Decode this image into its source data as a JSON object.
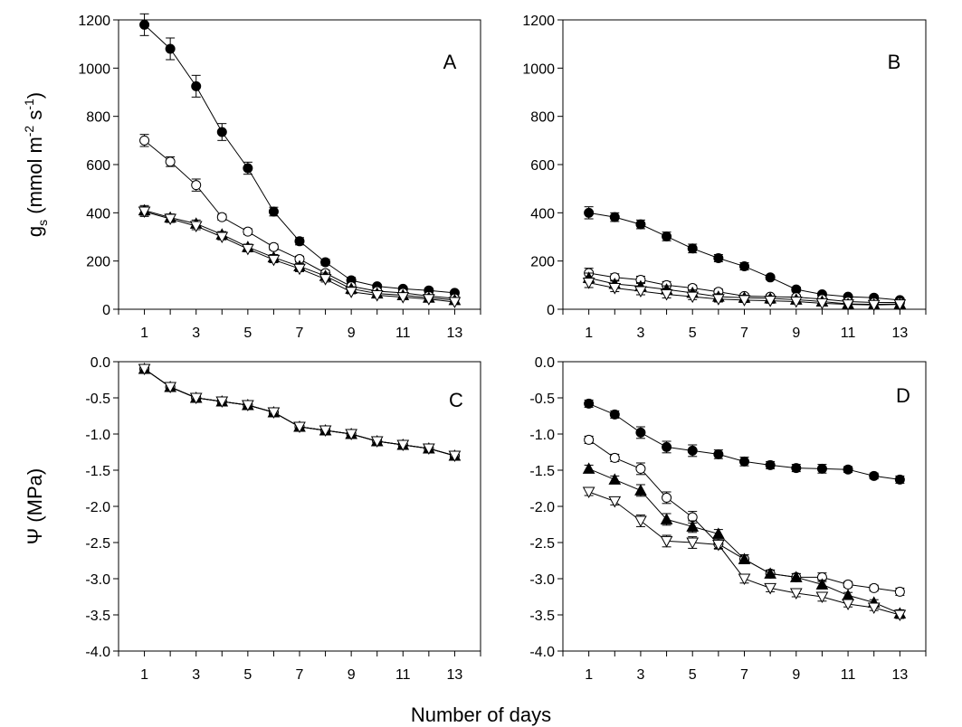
{
  "figure": {
    "xlabel": "Number of days"
  },
  "chart_data": [
    {
      "panel": "A",
      "type": "line",
      "ylabel": "gs (mmol m-2 s-1)",
      "ylim": [
        0,
        1200
      ],
      "yticks": [
        0,
        200,
        400,
        600,
        800,
        1000,
        1200
      ],
      "xlim": [
        0,
        14
      ],
      "xticks": [
        1,
        3,
        5,
        7,
        9,
        11,
        13
      ],
      "x": [
        1,
        2,
        3,
        4,
        5,
        6,
        7,
        8,
        9,
        10,
        11,
        12,
        13
      ],
      "series": [
        {
          "name": "filled-circle",
          "marker": "circle-filled",
          "values": [
            1180,
            1080,
            925,
            735,
            585,
            405,
            282,
            195,
            120,
            95,
            85,
            78,
            68
          ],
          "errors": [
            45,
            45,
            45,
            35,
            25,
            18,
            15,
            12,
            12,
            8,
            8,
            8,
            8
          ]
        },
        {
          "name": "open-circle",
          "marker": "circle-open",
          "values": [
            700,
            612,
            515,
            382,
            322,
            258,
            208,
            150,
            95,
            75,
            68,
            55,
            45
          ],
          "errors": [
            25,
            20,
            25,
            12,
            12,
            12,
            12,
            12,
            8,
            8,
            8,
            8,
            8
          ]
        },
        {
          "name": "filled-triangle",
          "marker": "triangle-up-filled",
          "values": [
            410,
            380,
            355,
            310,
            258,
            215,
            178,
            138,
            85,
            65,
            58,
            48,
            38
          ],
          "errors": [
            20,
            15,
            15,
            12,
            12,
            12,
            12,
            12,
            8,
            8,
            8,
            8,
            8
          ]
        },
        {
          "name": "open-triangle",
          "marker": "triangle-down-open",
          "values": [
            405,
            375,
            345,
            300,
            250,
            205,
            168,
            125,
            72,
            58,
            50,
            42,
            30
          ],
          "errors": [
            20,
            15,
            15,
            12,
            12,
            12,
            12,
            12,
            8,
            8,
            8,
            8,
            8
          ]
        }
      ]
    },
    {
      "panel": "B",
      "type": "line",
      "ylabel": "",
      "ylim": [
        0,
        1200
      ],
      "yticks": [
        0,
        200,
        400,
        600,
        800,
        1000,
        1200
      ],
      "xlim": [
        0,
        14
      ],
      "xticks": [
        1,
        3,
        5,
        7,
        9,
        11,
        13
      ],
      "x": [
        1,
        2,
        3,
        4,
        5,
        6,
        7,
        8,
        9,
        10,
        11,
        12,
        13
      ],
      "series": [
        {
          "name": "filled-circle",
          "marker": "circle-filled",
          "values": [
            400,
            382,
            352,
            302,
            252,
            212,
            178,
            132,
            82,
            62,
            52,
            48,
            38
          ],
          "errors": [
            25,
            18,
            18,
            18,
            18,
            15,
            15,
            10,
            10,
            8,
            8,
            8,
            8
          ]
        },
        {
          "name": "open-circle",
          "marker": "circle-open",
          "values": [
            150,
            132,
            122,
            100,
            88,
            72,
            55,
            52,
            50,
            42,
            32,
            28,
            28
          ],
          "errors": [
            20,
            15,
            15,
            15,
            12,
            12,
            10,
            10,
            10,
            8,
            8,
            8,
            8
          ]
        },
        {
          "name": "filled-triangle",
          "marker": "triangle-up-filled",
          "values": [
            130,
            105,
            95,
            82,
            68,
            52,
            48,
            45,
            40,
            32,
            22,
            20,
            22
          ],
          "errors": [
            20,
            15,
            15,
            15,
            12,
            12,
            10,
            10,
            10,
            8,
            8,
            8,
            8
          ]
        },
        {
          "name": "open-triangle",
          "marker": "triangle-down-open",
          "values": [
            110,
            88,
            75,
            62,
            52,
            42,
            38,
            35,
            32,
            25,
            20,
            18,
            20
          ],
          "errors": [
            20,
            15,
            15,
            15,
            12,
            12,
            10,
            10,
            10,
            8,
            8,
            8,
            8
          ]
        }
      ]
    },
    {
      "panel": "C",
      "type": "line",
      "ylabel": "Ψ (MPa)",
      "ylim": [
        -4.0,
        0.0
      ],
      "yticks": [
        0.0,
        -0.5,
        -1.0,
        -1.5,
        -2.0,
        -2.5,
        -3.0,
        -3.5,
        -4.0
      ],
      "ytick_labels": [
        "0.0",
        "-0.5",
        "-1.0",
        "-1.5",
        "-2.0",
        "-2.5",
        "-3.0",
        "-3.5",
        "-4.0"
      ],
      "xlim": [
        0,
        14
      ],
      "xticks": [
        1,
        3,
        5,
        7,
        9,
        11,
        13
      ],
      "x": [
        1,
        2,
        3,
        4,
        5,
        6,
        7,
        8,
        9,
        10,
        11,
        12,
        13
      ],
      "series": [
        {
          "name": "filled-circle",
          "marker": "circle-filled",
          "values": [
            -0.1,
            -0.35,
            -0.5,
            -0.55,
            -0.6,
            -0.7,
            -0.9,
            -0.95,
            -1.0,
            -1.1,
            -1.15,
            -1.2,
            -1.3
          ],
          "errors": [
            0.03,
            0.03,
            0.03,
            0.03,
            0.03,
            0.03,
            0.03,
            0.03,
            0.03,
            0.03,
            0.03,
            0.03,
            0.03
          ]
        },
        {
          "name": "open-circle",
          "marker": "circle-open",
          "values": [
            -0.1,
            -0.35,
            -0.5,
            -0.55,
            -0.6,
            -0.7,
            -0.9,
            -0.95,
            -1.0,
            -1.1,
            -1.15,
            -1.2,
            -1.3
          ],
          "errors": [
            0.03,
            0.03,
            0.03,
            0.03,
            0.03,
            0.03,
            0.03,
            0.03,
            0.03,
            0.03,
            0.03,
            0.03,
            0.03
          ]
        },
        {
          "name": "filled-triangle",
          "marker": "triangle-up-filled",
          "values": [
            -0.1,
            -0.35,
            -0.5,
            -0.55,
            -0.6,
            -0.7,
            -0.9,
            -0.95,
            -1.0,
            -1.1,
            -1.15,
            -1.2,
            -1.3
          ],
          "errors": [
            0.03,
            0.03,
            0.03,
            0.03,
            0.03,
            0.03,
            0.03,
            0.03,
            0.03,
            0.03,
            0.03,
            0.03,
            0.03
          ]
        },
        {
          "name": "open-triangle",
          "marker": "triangle-down-open",
          "values": [
            -0.1,
            -0.35,
            -0.5,
            -0.55,
            -0.6,
            -0.7,
            -0.9,
            -0.95,
            -1.0,
            -1.1,
            -1.15,
            -1.2,
            -1.3
          ],
          "errors": [
            0.03,
            0.03,
            0.03,
            0.03,
            0.03,
            0.03,
            0.03,
            0.03,
            0.03,
            0.03,
            0.03,
            0.03,
            0.03
          ]
        }
      ]
    },
    {
      "panel": "D",
      "type": "line",
      "ylabel": "",
      "ylim": [
        -4.0,
        0.0
      ],
      "yticks": [
        0.0,
        -0.5,
        -1.0,
        -1.5,
        -2.0,
        -2.5,
        -3.0,
        -3.5,
        -4.0
      ],
      "ytick_labels": [
        "0.0",
        "-0.5",
        "-1.0",
        "-1.5",
        "-2.0",
        "-2.5",
        "-3.0",
        "-3.5",
        "-4.0"
      ],
      "xlim": [
        0,
        14
      ],
      "xticks": [
        1,
        3,
        5,
        7,
        9,
        11,
        13
      ],
      "x": [
        1,
        2,
        3,
        4,
        5,
        6,
        7,
        8,
        9,
        10,
        11,
        12,
        13
      ],
      "series": [
        {
          "name": "filled-circle",
          "marker": "circle-filled",
          "values": [
            -0.58,
            -0.73,
            -0.98,
            -1.18,
            -1.23,
            -1.28,
            -1.38,
            -1.43,
            -1.47,
            -1.48,
            -1.49,
            -1.58,
            -1.63
          ],
          "errors": [
            0.05,
            0.05,
            0.08,
            0.08,
            0.08,
            0.06,
            0.06,
            0.05,
            0.05,
            0.06,
            0.04,
            0.04,
            0.05
          ]
        },
        {
          "name": "open-circle",
          "marker": "circle-open",
          "values": [
            -1.08,
            -1.33,
            -1.48,
            -1.88,
            -2.15,
            -2.52,
            -2.73,
            -2.93,
            -2.98,
            -2.98,
            -3.08,
            -3.13,
            -3.18
          ],
          "errors": [
            0.05,
            0.05,
            0.08,
            0.08,
            0.08,
            0.06,
            0.06,
            0.05,
            0.05,
            0.06,
            0.04,
            0.04,
            0.05
          ]
        },
        {
          "name": "filled-triangle",
          "marker": "triangle-up-filled",
          "values": [
            -1.48,
            -1.63,
            -1.78,
            -2.18,
            -2.28,
            -2.38,
            -2.73,
            -2.93,
            -2.98,
            -3.08,
            -3.23,
            -3.33,
            -3.48
          ],
          "errors": [
            0.05,
            0.05,
            0.08,
            0.08,
            0.08,
            0.06,
            0.06,
            0.05,
            0.05,
            0.06,
            0.04,
            0.04,
            0.05
          ]
        },
        {
          "name": "open-triangle",
          "marker": "triangle-down-open",
          "values": [
            -1.8,
            -1.93,
            -2.2,
            -2.48,
            -2.5,
            -2.53,
            -3.0,
            -3.13,
            -3.2,
            -3.25,
            -3.35,
            -3.4,
            -3.5
          ],
          "errors": [
            0.05,
            0.05,
            0.08,
            0.08,
            0.08,
            0.06,
            0.06,
            0.05,
            0.05,
            0.06,
            0.04,
            0.04,
            0.05
          ]
        }
      ]
    }
  ]
}
